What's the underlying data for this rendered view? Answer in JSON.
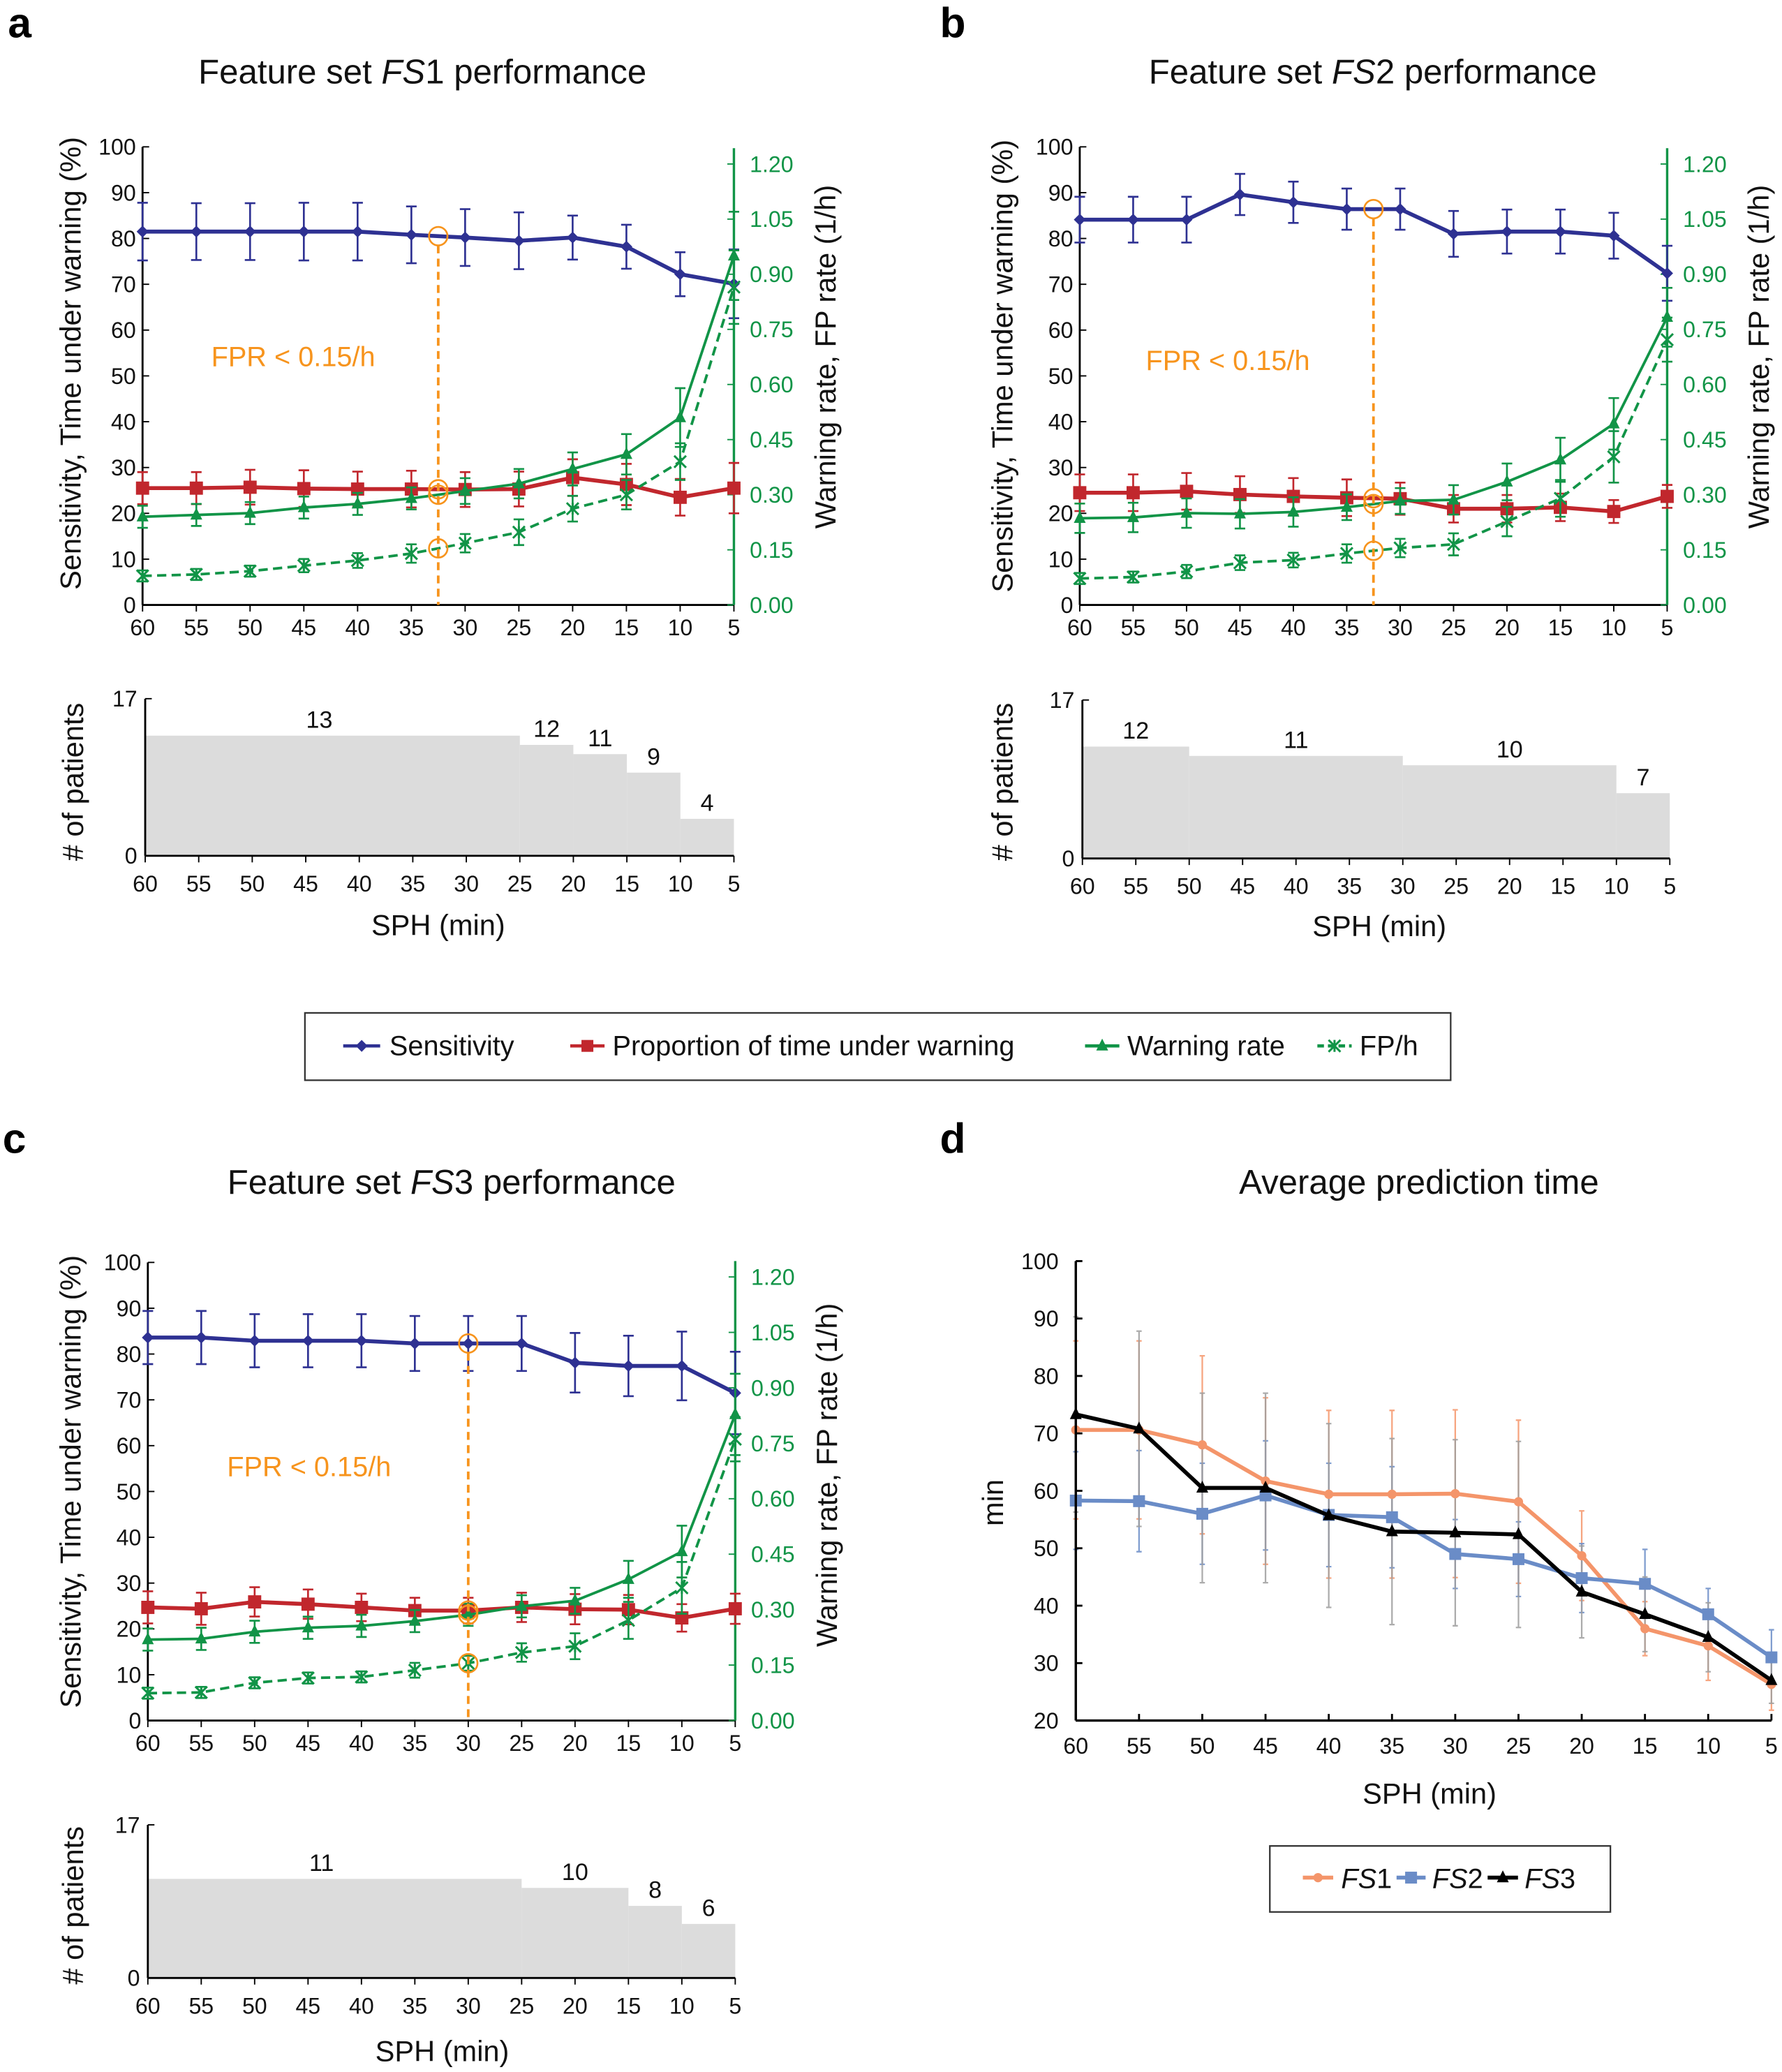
{
  "panel_letters": {
    "a": "a",
    "b": "b",
    "c": "c",
    "d": "d"
  },
  "legend_main": {
    "items": [
      {
        "label": "Sensitivity",
        "color": "#2e3192",
        "marker": "diamond",
        "dash": false
      },
      {
        "label": "Proportion of time under warning",
        "color": "#c1272d",
        "marker": "square",
        "dash": false
      },
      {
        "label": "Warning rate",
        "color": "#119447",
        "marker": "triangle",
        "dash": false
      },
      {
        "label": "FP/h",
        "color": "#119447",
        "marker": "x",
        "dash": true
      }
    ]
  },
  "legend_d": {
    "items": [
      {
        "label_italic": "FS",
        "label_rest": "1",
        "color": "#f4956a",
        "marker": "circle"
      },
      {
        "label_italic": "FS",
        "label_rest": "2",
        "color": "#6a8cc7",
        "marker": "square"
      },
      {
        "label_italic": "FS",
        "label_rest": "3",
        "color": "#000000",
        "marker": "triangle"
      }
    ]
  },
  "chart_data": [
    {
      "panel": "a",
      "type": "line",
      "title_prefix": "Feature set ",
      "title_italic": "FS",
      "title_suffix": "1 performance",
      "x": [
        60,
        55,
        50,
        45,
        40,
        35,
        30,
        25,
        20,
        15,
        10,
        5
      ],
      "x_ticks": [
        "60",
        "55",
        "50",
        "45",
        "40",
        "35",
        "30",
        "25",
        "20",
        "15",
        "10",
        "5"
      ],
      "left_axis": {
        "label": "Sensitivity, Time under warning (%)",
        "ylim": [
          0,
          100
        ],
        "ticks": [
          "0",
          "10",
          "20",
          "30",
          "40",
          "50",
          "60",
          "70",
          "80",
          "90",
          "100"
        ]
      },
      "right_axis": {
        "label": "Warning rate, FP rate (1/h)",
        "ylim": [
          0,
          1.2
        ],
        "ticks": [
          "0.00",
          "0.15",
          "0.30",
          "0.45",
          "0.60",
          "0.75",
          "0.90",
          "1.05",
          "1.20"
        ],
        "color": "#119447"
      },
      "threshold": {
        "label": "FPR < 0.15/h",
        "sph": 32.5,
        "color": "#f7941d"
      },
      "series": [
        {
          "name": "Sensitivity",
          "axis": "left",
          "color": "#2e3192",
          "marker": "diamond",
          "dash": false,
          "values": [
            81.5,
            81.5,
            81.5,
            81.5,
            81.5,
            80.8,
            80.2,
            79.5,
            80.2,
            78.2,
            72.2,
            70.1
          ],
          "errors": [
            6.3,
            6.2,
            6.2,
            6.3,
            6.3,
            6.2,
            6.2,
            6.2,
            4.8,
            4.8,
            4.8,
            7.5
          ]
        },
        {
          "name": "Proportion of time under warning",
          "axis": "left",
          "color": "#c1272d",
          "marker": "square",
          "dash": false,
          "values": [
            25.5,
            25.5,
            25.7,
            25.4,
            25.3,
            25.3,
            25.2,
            25.3,
            27.8,
            26.3,
            23.5,
            25.5
          ],
          "errors": [
            3.5,
            3.5,
            3.8,
            4.0,
            3.8,
            4.0,
            3.8,
            3.8,
            4.0,
            4.5,
            4.0,
            5.5
          ]
        },
        {
          "name": "Warning rate",
          "axis": "right",
          "color": "#119447",
          "marker": "triangle",
          "dash": false,
          "values": [
            0.24,
            0.245,
            0.25,
            0.265,
            0.275,
            0.29,
            0.31,
            0.33,
            0.37,
            0.41,
            0.51,
            0.95
          ],
          "errors": [
            0.03,
            0.03,
            0.03,
            0.03,
            0.03,
            0.03,
            0.035,
            0.04,
            0.045,
            0.055,
            0.08,
            0.12
          ]
        },
        {
          "name": "FP/h",
          "axis": "right",
          "color": "#119447",
          "marker": "x",
          "dash": true,
          "values": [
            0.079,
            0.083,
            0.092,
            0.107,
            0.121,
            0.14,
            0.168,
            0.198,
            0.262,
            0.3,
            0.39,
            0.865
          ],
          "errors": [
            0.015,
            0.015,
            0.015,
            0.018,
            0.02,
            0.025,
            0.025,
            0.035,
            0.035,
            0.04,
            0.05,
            0.1
          ]
        }
      ],
      "patients": {
        "type": "step-bar",
        "ylabel": "# of patients",
        "ylim": [
          0,
          17
        ],
        "ticks": [
          "0",
          "17"
        ],
        "xlabel": "SPH (min)",
        "segments": [
          {
            "from": 60,
            "to": 25,
            "count": 13
          },
          {
            "from": 25,
            "to": 20,
            "count": 12
          },
          {
            "from": 20,
            "to": 15,
            "count": 11
          },
          {
            "from": 15,
            "to": 10,
            "count": 9
          },
          {
            "from": 10,
            "to": 5,
            "count": 4
          }
        ]
      }
    },
    {
      "panel": "b",
      "type": "line",
      "title_prefix": "Feature set ",
      "title_italic": "FS",
      "title_suffix": "2 performance",
      "x": [
        60,
        55,
        50,
        45,
        40,
        35,
        30,
        25,
        20,
        15,
        10,
        5
      ],
      "x_ticks": [
        "60",
        "55",
        "50",
        "45",
        "40",
        "35",
        "30",
        "25",
        "20",
        "15",
        "10",
        "5"
      ],
      "left_axis": {
        "label": "Sensitivity, Time under warning (%)",
        "ylim": [
          0,
          100
        ],
        "ticks": [
          "0",
          "10",
          "20",
          "30",
          "40",
          "50",
          "60",
          "70",
          "80",
          "90",
          "100"
        ]
      },
      "right_axis": {
        "label": "Warning rate, FP rate (1/h)",
        "ylim": [
          0,
          1.2
        ],
        "ticks": [
          "0.00",
          "0.15",
          "0.30",
          "0.45",
          "0.60",
          "0.75",
          "0.90",
          "1.05",
          "1.20"
        ],
        "color": "#119447"
      },
      "threshold": {
        "label": "FPR < 0.15/h",
        "sph": 32.5,
        "color": "#f7941d"
      },
      "series": [
        {
          "name": "Sensitivity",
          "axis": "left",
          "color": "#2e3192",
          "marker": "diamond",
          "dash": false,
          "values": [
            84.1,
            84.1,
            84.1,
            89.6,
            87.9,
            86.4,
            86.4,
            81.0,
            81.5,
            81.5,
            80.6,
            72.4
          ],
          "errors": [
            5,
            5,
            5,
            4.5,
            4.5,
            4.5,
            4.5,
            5,
            4.8,
            4.8,
            5,
            6
          ]
        },
        {
          "name": "Proportion of time under warning",
          "axis": "left",
          "color": "#c1272d",
          "marker": "square",
          "dash": false,
          "values": [
            24.5,
            24.5,
            24.8,
            24.1,
            23.7,
            23.4,
            23.2,
            21.0,
            21.0,
            21.3,
            20.4,
            23.7
          ],
          "errors": [
            4,
            4,
            4,
            4,
            4,
            4,
            3.5,
            3,
            3,
            3,
            2.5,
            2.5
          ]
        },
        {
          "name": "Warning rate",
          "axis": "right",
          "color": "#119447",
          "marker": "triangle",
          "dash": false,
          "values": [
            0.236,
            0.238,
            0.25,
            0.248,
            0.253,
            0.266,
            0.283,
            0.286,
            0.335,
            0.395,
            0.493,
            0.783
          ],
          "errors": [
            0.04,
            0.04,
            0.04,
            0.04,
            0.04,
            0.035,
            0.035,
            0.04,
            0.05,
            0.06,
            0.07,
            0.08
          ]
        },
        {
          "name": "FP/h",
          "axis": "right",
          "color": "#119447",
          "marker": "x",
          "dash": true,
          "values": [
            0.072,
            0.076,
            0.091,
            0.115,
            0.122,
            0.14,
            0.155,
            0.165,
            0.227,
            0.29,
            0.403,
            0.722
          ],
          "errors": [
            0.015,
            0.015,
            0.018,
            0.02,
            0.02,
            0.025,
            0.025,
            0.03,
            0.04,
            0.05,
            0.07,
            0.06
          ]
        }
      ],
      "patients": {
        "type": "step-bar",
        "ylabel": "# of patients",
        "ylim": [
          0,
          17
        ],
        "ticks": [
          "0",
          "17"
        ],
        "xlabel": "SPH (min)",
        "segments": [
          {
            "from": 60,
            "to": 50,
            "count": 12
          },
          {
            "from": 50,
            "to": 30,
            "count": 11
          },
          {
            "from": 30,
            "to": 10,
            "count": 10
          },
          {
            "from": 10,
            "to": 5,
            "count": 7
          }
        ]
      }
    },
    {
      "panel": "c",
      "type": "line",
      "title_prefix": "Feature set ",
      "title_italic": "FS",
      "title_suffix": "3 performance",
      "x": [
        60,
        55,
        50,
        45,
        40,
        35,
        30,
        25,
        20,
        15,
        10,
        5
      ],
      "x_ticks": [
        "60",
        "55",
        "50",
        "45",
        "40",
        "35",
        "30",
        "25",
        "20",
        "15",
        "10",
        "5"
      ],
      "left_axis": {
        "label": "Sensitivity, Time under warning (%)",
        "ylim": [
          0,
          100
        ],
        "ticks": [
          "0",
          "10",
          "20",
          "30",
          "40",
          "50",
          "60",
          "70",
          "80",
          "90",
          "100"
        ]
      },
      "right_axis": {
        "label": "Warning rate, FP rate (1/h)",
        "ylim": [
          0,
          1.2
        ],
        "ticks": [
          "0.00",
          "0.15",
          "0.30",
          "0.45",
          "0.60",
          "0.75",
          "0.90",
          "1.05",
          "1.20"
        ],
        "color": "#119447"
      },
      "threshold": {
        "label": "FPR < 0.15/h",
        "sph": 30,
        "color": "#f7941d"
      },
      "series": [
        {
          "name": "Sensitivity",
          "axis": "left",
          "color": "#2e3192",
          "marker": "diamond",
          "dash": false,
          "values": [
            83.6,
            83.6,
            82.9,
            82.9,
            82.9,
            82.3,
            82.3,
            82.3,
            78.1,
            77.4,
            77.4,
            71.5
          ],
          "errors": [
            5.8,
            5.8,
            5.8,
            5.8,
            5.8,
            6,
            6,
            6,
            6.5,
            6.6,
            7.5,
            9
          ]
        },
        {
          "name": "Proportion of time under warning",
          "axis": "left",
          "color": "#c1272d",
          "marker": "square",
          "dash": false,
          "values": [
            24.7,
            24.4,
            25.9,
            25.4,
            24.7,
            24.0,
            24.0,
            24.7,
            24.3,
            24.2,
            22.4,
            24.4
          ],
          "errors": [
            3.5,
            3.5,
            3.2,
            3.2,
            3.0,
            2.8,
            2.8,
            3.2,
            3.3,
            3.2,
            3.0,
            3.3
          ]
        },
        {
          "name": "Warning rate",
          "axis": "right",
          "color": "#119447",
          "marker": "triangle",
          "dash": false,
          "values": [
            0.219,
            0.221,
            0.24,
            0.251,
            0.256,
            0.269,
            0.286,
            0.309,
            0.324,
            0.382,
            0.457,
            0.828
          ],
          "errors": [
            0.03,
            0.03,
            0.03,
            0.03,
            0.03,
            0.03,
            0.03,
            0.03,
            0.035,
            0.05,
            0.07,
            0.11
          ]
        },
        {
          "name": "FP/h",
          "axis": "right",
          "color": "#119447",
          "marker": "x",
          "dash": true,
          "values": [
            0.074,
            0.076,
            0.102,
            0.115,
            0.118,
            0.136,
            0.155,
            0.184,
            0.201,
            0.271,
            0.359,
            0.761
          ],
          "errors": [
            0.015,
            0.015,
            0.015,
            0.015,
            0.015,
            0.02,
            0.02,
            0.025,
            0.035,
            0.05,
            0.07,
            0.06
          ]
        }
      ],
      "patients": {
        "type": "step-bar",
        "ylabel": "# of patients",
        "ylim": [
          0,
          17
        ],
        "ticks": [
          "0",
          "17"
        ],
        "xlabel": "SPH (min)",
        "segments": [
          {
            "from": 60,
            "to": 25,
            "count": 11
          },
          {
            "from": 25,
            "to": 15,
            "count": 10
          },
          {
            "from": 15,
            "to": 10,
            "count": 8
          },
          {
            "from": 10,
            "to": 5,
            "count": 6
          }
        ]
      }
    },
    {
      "panel": "d",
      "type": "line",
      "title": "Average prediction time",
      "xlabel": "SPH (min)",
      "ylabel": "min",
      "x": [
        60,
        55,
        50,
        45,
        40,
        35,
        30,
        25,
        20,
        15,
        10,
        5
      ],
      "x_ticks": [
        "60",
        "55",
        "50",
        "45",
        "40",
        "35",
        "30",
        "25",
        "20",
        "15",
        "10",
        "5"
      ],
      "ylim": [
        20,
        100
      ],
      "y_ticks": [
        "20",
        "30",
        "40",
        "50",
        "60",
        "70",
        "80",
        "90",
        "100"
      ],
      "series": [
        {
          "name": "FS1",
          "color": "#f4956a",
          "marker": "circle",
          "values": [
            70.6,
            70.6,
            68.0,
            61.7,
            59.4,
            59.4,
            59.5,
            58.1,
            48.7,
            36.0,
            33.0,
            26.3
          ],
          "errors": [
            15.5,
            15.5,
            15.5,
            14.5,
            14.6,
            14.6,
            14.6,
            14.2,
            7.8,
            4.7,
            6.0,
            4.5
          ]
        },
        {
          "name": "FS2",
          "color": "#6a8cc7",
          "marker": "square",
          "values": [
            58.3,
            58.2,
            56.0,
            59.2,
            55.8,
            55.4,
            49.0,
            48.1,
            44.8,
            43.8,
            38.5,
            31.0
          ],
          "errors": [
            8.5,
            8.8,
            8.8,
            9.5,
            9.0,
            8.8,
            6.0,
            6.5,
            6.0,
            6.0,
            4.5,
            4.8
          ]
        },
        {
          "name": "FS3",
          "color": "#000000",
          "errcolor": "#9e9e9e",
          "marker": "triangle",
          "values": [
            73.3,
            70.8,
            60.5,
            60.5,
            55.7,
            52.9,
            52.7,
            52.4,
            42.4,
            38.5,
            34.5,
            27.0
          ],
          "errors": [
            17,
            17,
            16.5,
            16.5,
            16,
            16.2,
            16.2,
            16.2,
            8,
            6.5,
            6,
            4
          ]
        }
      ]
    }
  ]
}
